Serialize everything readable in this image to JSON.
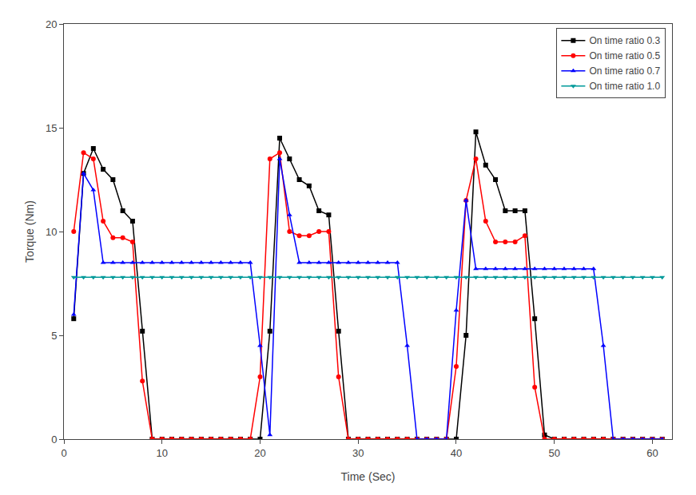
{
  "chart_data": {
    "type": "line",
    "xlabel": "Time (Sec)",
    "ylabel": "Torque (Nm)",
    "xlim": [
      0,
      62
    ],
    "ylim": [
      0,
      20
    ],
    "xticks": [
      0,
      10,
      20,
      30,
      40,
      50,
      60
    ],
    "yticks": [
      0,
      5,
      10,
      15,
      20
    ],
    "grid": false,
    "legend": "upper right",
    "x": [
      1,
      2,
      3,
      4,
      5,
      6,
      7,
      8,
      9,
      10,
      11,
      12,
      13,
      14,
      15,
      16,
      17,
      18,
      19,
      20,
      21,
      22,
      23,
      24,
      25,
      26,
      27,
      28,
      29,
      30,
      31,
      32,
      33,
      34,
      35,
      36,
      37,
      38,
      39,
      40,
      41,
      42,
      43,
      44,
      45,
      46,
      47,
      48,
      49,
      50,
      51,
      52,
      53,
      54,
      55,
      56,
      57,
      58,
      59,
      60,
      61
    ],
    "series": [
      {
        "name": "On time ratio 0.3",
        "color": "#000000",
        "marker": "square",
        "values": [
          5.8,
          12.8,
          14.0,
          13.0,
          12.5,
          11.0,
          10.5,
          5.2,
          0.0,
          0.0,
          0.0,
          0.0,
          0.0,
          0.0,
          0.0,
          0.0,
          0.0,
          0.0,
          0.0,
          0.0,
          5.2,
          14.5,
          13.5,
          12.5,
          12.2,
          11.0,
          10.8,
          5.2,
          0.0,
          0.0,
          0.0,
          0.0,
          0.0,
          0.0,
          0.0,
          0.0,
          0.0,
          0.0,
          0.0,
          0.0,
          5.0,
          14.8,
          13.2,
          12.5,
          11.0,
          11.0,
          11.0,
          5.8,
          0.2,
          0.0,
          0.0,
          0.0,
          0.0,
          0.0,
          0.0,
          0.0,
          0.0,
          0.0,
          0.0,
          0.0,
          0.0
        ]
      },
      {
        "name": "On time ratio 0.5",
        "color": "#ff0000",
        "marker": "circle",
        "values": [
          10.0,
          13.8,
          13.5,
          10.5,
          9.7,
          9.7,
          9.5,
          2.8,
          0.0,
          0.0,
          0.0,
          0.0,
          0.0,
          0.0,
          0.0,
          0.0,
          0.0,
          0.0,
          0.0,
          3.0,
          13.5,
          13.8,
          10.0,
          9.8,
          9.8,
          10.0,
          10.0,
          3.0,
          0.0,
          0.0,
          0.0,
          0.0,
          0.0,
          0.0,
          0.0,
          0.0,
          0.0,
          0.0,
          0.0,
          3.5,
          11.5,
          13.5,
          10.5,
          9.5,
          9.5,
          9.5,
          9.8,
          2.5,
          0.0,
          0.0,
          0.0,
          0.0,
          0.0,
          0.0,
          0.0,
          0.0,
          0.0,
          0.0,
          0.0,
          0.0,
          0.0
        ]
      },
      {
        "name": "On time ratio 0.7",
        "color": "#0000ff",
        "marker": "triangle-up",
        "values": [
          6.0,
          12.8,
          12.0,
          8.5,
          8.5,
          8.5,
          8.5,
          8.5,
          8.5,
          8.5,
          8.5,
          8.5,
          8.5,
          8.5,
          8.5,
          8.5,
          8.5,
          8.5,
          8.5,
          4.5,
          0.2,
          13.5,
          10.8,
          8.5,
          8.5,
          8.5,
          8.5,
          8.5,
          8.5,
          8.5,
          8.5,
          8.5,
          8.5,
          8.5,
          4.5,
          0.0,
          0.0,
          0.0,
          0.0,
          6.2,
          11.5,
          8.2,
          8.2,
          8.2,
          8.2,
          8.2,
          8.2,
          8.2,
          8.2,
          8.2,
          8.2,
          8.2,
          8.2,
          8.2,
          4.5,
          0.0,
          0.0,
          0.0,
          0.0,
          0.0,
          0.0
        ]
      },
      {
        "name": "On time ratio 1.0",
        "color": "#009999",
        "marker": "triangle-down",
        "values": [
          7.8,
          7.8,
          7.8,
          7.8,
          7.8,
          7.8,
          7.8,
          7.8,
          7.8,
          7.8,
          7.8,
          7.8,
          7.8,
          7.8,
          7.8,
          7.8,
          7.8,
          7.8,
          7.8,
          7.8,
          7.8,
          7.8,
          7.8,
          7.8,
          7.8,
          7.8,
          7.8,
          7.8,
          7.8,
          7.8,
          7.8,
          7.8,
          7.8,
          7.8,
          7.8,
          7.8,
          7.8,
          7.8,
          7.8,
          7.8,
          7.8,
          7.8,
          7.8,
          7.8,
          7.8,
          7.8,
          7.8,
          7.8,
          7.8,
          7.8,
          7.8,
          7.8,
          7.8,
          7.8,
          7.8,
          7.8,
          7.8,
          7.8,
          7.8,
          7.8,
          7.8
        ]
      }
    ]
  }
}
